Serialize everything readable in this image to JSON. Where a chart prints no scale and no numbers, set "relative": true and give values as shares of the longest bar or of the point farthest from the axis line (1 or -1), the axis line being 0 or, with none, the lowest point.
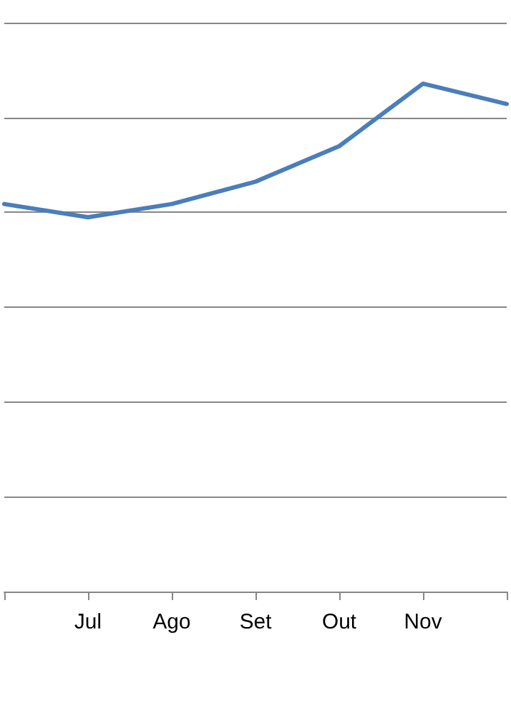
{
  "chart_data": {
    "type": "line",
    "relative": true,
    "categories": [
      null,
      "Jul",
      "Ago",
      "Set",
      "Out",
      "Nov",
      null
    ],
    "series": [
      {
        "color": "#4a7ebb",
        "values": [
          0.763,
          0.737,
          0.763,
          0.807,
          0.877,
          1,
          0.96
        ]
      }
    ],
    "grid": "y",
    "marker": "none",
    "line_style": "solid"
  }
}
